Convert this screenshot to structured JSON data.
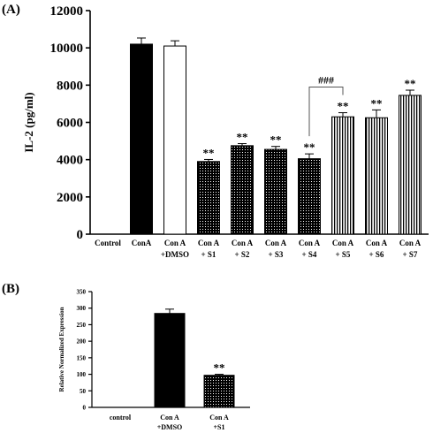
{
  "panel_labels": {
    "a": "(A)",
    "b": "(B)"
  },
  "chart_data": [
    {
      "type": "bar",
      "ylabel": "IL-2 (pg/ml)",
      "ylim": [
        0,
        12000
      ],
      "yticks": [
        0,
        2000,
        4000,
        6000,
        8000,
        10000,
        12000
      ],
      "categories": [
        {
          "line1": "Control",
          "line2": ""
        },
        {
          "line1": "ConA",
          "line2": ""
        },
        {
          "line1": "Con A",
          "line2": "+DMSO"
        },
        {
          "line1": "Con A",
          "line2": "+ S1"
        },
        {
          "line1": "Con A",
          "line2": "+ S2"
        },
        {
          "line1": "Con A",
          "line2": "+ S3"
        },
        {
          "line1": "Con A",
          "line2": "+ S4"
        },
        {
          "line1": "Con A",
          "line2": "+ S5"
        },
        {
          "line1": "Con A",
          "line2": "+ S6"
        },
        {
          "line1": "Con A",
          "line2": "+ S7"
        }
      ],
      "values": [
        0,
        10200,
        10100,
        3900,
        4750,
        4550,
        4050,
        6300,
        6250,
        7450
      ],
      "errors": [
        0,
        330,
        280,
        110,
        110,
        160,
        260,
        220,
        420,
        280
      ],
      "fills": [
        "none",
        "solid",
        "white",
        "dots",
        "dots",
        "dots",
        "dots",
        "vlines",
        "vlines",
        "vlines"
      ],
      "significance": [
        "",
        "",
        "",
        "**",
        "**",
        "**",
        "**",
        "**",
        "**",
        "**"
      ],
      "bracket": {
        "from_index": 6,
        "to_index": 7,
        "label": "###"
      }
    },
    {
      "type": "bar",
      "ylabel": "Relative Normalized Expression",
      "ylim": [
        0,
        350
      ],
      "yticks": [
        0,
        50,
        100,
        150,
        200,
        250,
        300,
        350
      ],
      "categories": [
        {
          "line1": "control",
          "line2": ""
        },
        {
          "line1": "Con A",
          "line2": "+DMSO"
        },
        {
          "line1": "Con A",
          "line2": "+S1"
        }
      ],
      "values": [
        0,
        284,
        97
      ],
      "errors": [
        0,
        13,
        3
      ],
      "fills": [
        "none",
        "solid",
        "dots"
      ],
      "significance": [
        "",
        "",
        "**"
      ]
    }
  ]
}
